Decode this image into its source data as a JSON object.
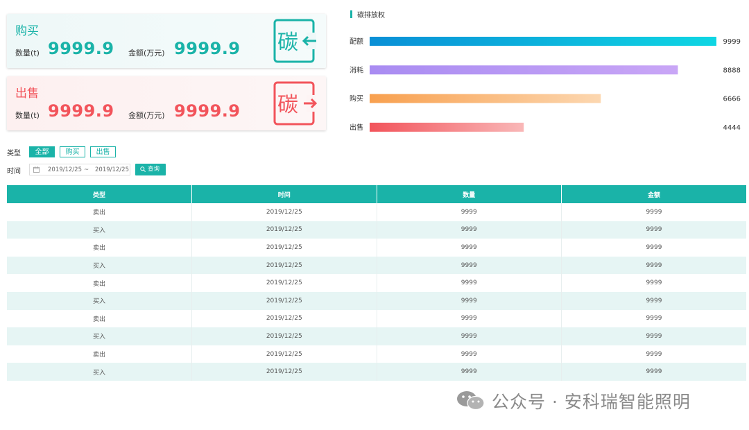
{
  "buy_card": {
    "title": "购买",
    "qty_label": "数量(t)",
    "qty_value": "9999.9",
    "amount_label": "金额(万元)",
    "amount_value": "9999.9",
    "badge_char": "碳"
  },
  "sell_card": {
    "title": "出售",
    "qty_label": "数量(t)",
    "qty_value": "9999.9",
    "amount_label": "金额(万元)",
    "amount_value": "9999.9",
    "badge_char": "碳"
  },
  "colors": {
    "accent": "#1ab3a8",
    "sell": "#f2545b"
  },
  "chart_data": {
    "type": "bar",
    "orientation": "horizontal",
    "title": "碳排放权",
    "categories": [
      "配额",
      "消耗",
      "购买",
      "出售"
    ],
    "values": [
      9999,
      8888,
      6666,
      4444
    ],
    "value_labels": [
      "9999",
      "8888",
      "6666",
      "4444"
    ],
    "bar_colors": [
      [
        "#0a8fd6",
        "#0fd6e3"
      ],
      [
        "#a98cf2",
        "#c9a6f6"
      ],
      [
        "#f8a04f",
        "#fcd7b0"
      ],
      [
        "#f2545b",
        "#f9b8b8"
      ]
    ],
    "xlim": [
      0,
      9999
    ],
    "grid": false
  },
  "filters": {
    "type_label": "类型",
    "type_options": [
      "全部",
      "购买",
      "出售"
    ],
    "type_selected": "全部",
    "time_label": "时间",
    "date_start": "2019/12/25",
    "date_sep": "~",
    "date_end": "2019/12/25",
    "query_label": "查询"
  },
  "table": {
    "headers": [
      "类型",
      "时间",
      "数量",
      "金额"
    ],
    "rows": [
      [
        "卖出",
        "2019/12/25",
        "9999",
        "9999"
      ],
      [
        "买入",
        "2019/12/25",
        "9999",
        "9999"
      ],
      [
        "卖出",
        "2019/12/25",
        "9999",
        "9999"
      ],
      [
        "买入",
        "2019/12/25",
        "9999",
        "9999"
      ],
      [
        "卖出",
        "2019/12/25",
        "9999",
        "9999"
      ],
      [
        "买入",
        "2019/12/25",
        "9999",
        "9999"
      ],
      [
        "卖出",
        "2019/12/25",
        "9999",
        "9999"
      ],
      [
        "买入",
        "2019/12/25",
        "9999",
        "9999"
      ],
      [
        "卖出",
        "2019/12/25",
        "9999",
        "9999"
      ],
      [
        "买入",
        "2019/12/25",
        "9999",
        "9999"
      ]
    ]
  },
  "watermark": {
    "text": "公众号 · 安科瑞智能照明",
    "icon": "wechat-icon"
  }
}
